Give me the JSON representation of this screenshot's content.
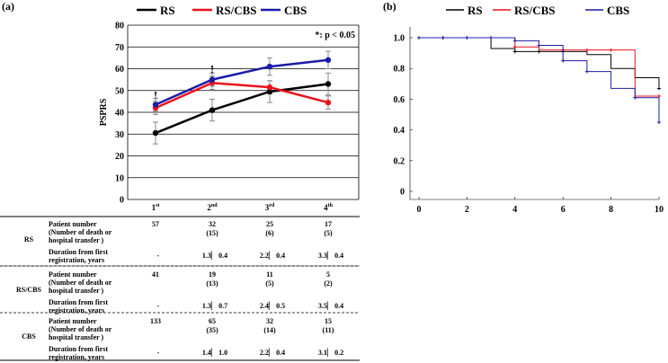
{
  "panel_a_label": "(a)",
  "panel_b_label": "(b)",
  "colors": {
    "RS": "#000000",
    "RS/CBS": "#e8141b",
    "CBS": "#1c1ca8",
    "errorbar": "#888888"
  },
  "chart_data": [
    {
      "type": "line",
      "title": "",
      "xlabel": "",
      "ylabel": "PSPRS",
      "ylim": [
        0,
        80
      ],
      "yticks": [
        0,
        10,
        20,
        30,
        40,
        50,
        60,
        70,
        80
      ],
      "categories": [
        "1st",
        "2nd",
        "3rd",
        "4th"
      ],
      "category_labels": [
        {
          "base": "1",
          "sup": "st"
        },
        {
          "base": "2",
          "sup": "nd"
        },
        {
          "base": "3",
          "sup": "rd"
        },
        {
          "base": "4",
          "sup": "th"
        }
      ],
      "legend": [
        "RS",
        "RS/CBS",
        "CBS"
      ],
      "legend_position": "top",
      "annotation": "*: p < 0.05",
      "significance_marks": [
        {
          "category_index": 0,
          "y": 46,
          "label": "!"
        },
        {
          "category_index": 1,
          "y": 58,
          "label": "!"
        }
      ],
      "series": [
        {
          "name": "RS",
          "values": [
            30.5,
            41,
            49.5,
            53
          ],
          "error": [
            5,
            5,
            5,
            5
          ]
        },
        {
          "name": "RS/CBS",
          "values": [
            42,
            53.5,
            51.5,
            44.5
          ],
          "error": [
            3,
            3,
            3,
            3
          ]
        },
        {
          "name": "CBS",
          "values": [
            43.5,
            55,
            61,
            64
          ],
          "error": [
            3,
            3,
            4,
            4
          ]
        }
      ]
    },
    {
      "type": "line",
      "subtype": "kaplan-meier",
      "title": "",
      "xlabel": "",
      "ylabel": "",
      "xlim": [
        0,
        10
      ],
      "ylim": [
        0,
        1.0
      ],
      "xticks": [
        0,
        2,
        4,
        6,
        8,
        10
      ],
      "yticks": [
        "0",
        "0.2",
        "0.4",
        "0.6",
        "0.8",
        "1.0"
      ],
      "ytick_values": [
        0,
        0.2,
        0.4,
        0.6,
        0.8,
        1.0
      ],
      "legend": [
        "RS",
        "RS/CBS",
        "CBS"
      ],
      "legend_position": "top",
      "series": [
        {
          "name": "RS",
          "steps": [
            [
              0,
              1.0
            ],
            [
              3,
              0.93
            ],
            [
              4,
              0.91
            ],
            [
              7,
              0.89
            ],
            [
              8,
              0.8
            ],
            [
              9,
              0.74
            ],
            [
              10,
              0.67
            ]
          ],
          "censors": [
            [
              0,
              1.0
            ],
            [
              1,
              1.0
            ],
            [
              2,
              1.0
            ],
            [
              4,
              0.91
            ],
            [
              5,
              0.91
            ],
            [
              6,
              0.91
            ],
            [
              10,
              0.67
            ]
          ]
        },
        {
          "name": "RS/CBS",
          "steps": [
            [
              0,
              1.0
            ],
            [
              4,
              0.94
            ],
            [
              5,
              0.92
            ],
            [
              9,
              0.62
            ],
            [
              10,
              0.62
            ]
          ],
          "censors": [
            [
              0,
              1.0
            ],
            [
              1,
              1.0
            ],
            [
              2,
              1.0
            ],
            [
              3,
              1.0
            ],
            [
              4,
              0.94
            ],
            [
              6,
              0.92
            ],
            [
              7,
              0.92
            ],
            [
              8,
              0.92
            ],
            [
              10,
              0.62
            ]
          ]
        },
        {
          "name": "CBS",
          "steps": [
            [
              0,
              1.0
            ],
            [
              4,
              0.98
            ],
            [
              5,
              0.95
            ],
            [
              6,
              0.85
            ],
            [
              7,
              0.78
            ],
            [
              8,
              0.67
            ],
            [
              9,
              0.61
            ],
            [
              10,
              0.45
            ]
          ],
          "censors": [
            [
              0,
              1.0
            ],
            [
              1,
              1.0
            ],
            [
              2,
              1.0
            ],
            [
              3,
              1.0
            ],
            [
              4,
              0.98
            ],
            [
              5,
              0.95
            ],
            [
              6,
              0.85
            ],
            [
              7,
              0.78
            ],
            [
              9,
              0.61
            ],
            [
              10,
              0.45
            ]
          ]
        }
      ]
    }
  ],
  "table": {
    "groups": [
      {
        "name": "RS",
        "patient_label": [
          "Patient number",
          "(Number of death or",
          "hospital transfer )"
        ],
        "duration_label": [
          "Duration from first",
          "registration, years"
        ],
        "patients": [
          "57",
          "32",
          "25",
          "17"
        ],
        "deaths": [
          "",
          "(15)",
          "(6)",
          "(5)"
        ],
        "durations": [
          "-",
          "1.3▏ 0.4",
          "2.2▏ 0.4",
          "3.3▏ 0.4"
        ]
      },
      {
        "name": "RS/CBS",
        "patient_label": [
          "Patient number",
          "(Number of death or",
          "hospital transfer )"
        ],
        "duration_label": [
          "Duration from first",
          "registration, years"
        ],
        "patients": [
          "41",
          "19",
          "11",
          "5"
        ],
        "deaths": [
          "",
          "(13)",
          "(5)",
          "(2)"
        ],
        "durations": [
          "-",
          "1.3▏ 0.7",
          "2.4▏ 0.5",
          "3.5▏ 0.4"
        ]
      },
      {
        "name": "CBS",
        "patient_label": [
          "Patient number",
          "(Number of death or",
          "hospital transfer )"
        ],
        "duration_label": [
          "Duration from first",
          "registration, years"
        ],
        "patients": [
          "133",
          "65",
          "32",
          "15"
        ],
        "deaths": [
          "",
          "(35)",
          "(14)",
          "(11)"
        ],
        "durations": [
          "-",
          "1.4▏ 1.0",
          "2.2▏ 0.4",
          "3.1▏ 0.2"
        ]
      }
    ]
  }
}
